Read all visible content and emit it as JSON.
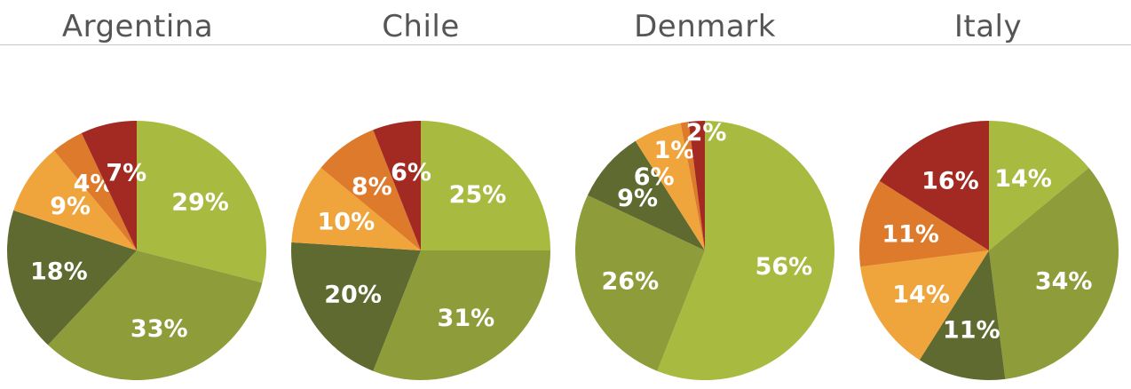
{
  "colors": {
    "light_green": "#a8bb40",
    "olive": "#8e9c3a",
    "dark_olive": "#5e6a30",
    "light_orange": "#f0a43c",
    "orange": "#de7a2c",
    "dark_red": "#a32a22",
    "title_text": "#555555"
  },
  "chart_data": [
    {
      "type": "pie",
      "title": "Argentina",
      "slices": [
        {
          "value": 29,
          "label": "29%",
          "color": "#a8bb40"
        },
        {
          "value": 33,
          "label": "33%",
          "color": "#8e9c3a"
        },
        {
          "value": 18,
          "label": "18%",
          "color": "#5e6a30"
        },
        {
          "value": 9,
          "label": "9%",
          "color": "#f0a43c"
        },
        {
          "value": 4,
          "label": "4%",
          "color": "#de7a2c"
        },
        {
          "value": 7,
          "label": "7%",
          "color": "#a32a22"
        }
      ]
    },
    {
      "type": "pie",
      "title": "Chile",
      "slices": [
        {
          "value": 25,
          "label": "25%",
          "color": "#a8bb40"
        },
        {
          "value": 31,
          "label": "31%",
          "color": "#8e9c3a"
        },
        {
          "value": 20,
          "label": "20%",
          "color": "#5e6a30"
        },
        {
          "value": 10,
          "label": "10%",
          "color": "#f0a43c"
        },
        {
          "value": 8,
          "label": "8%",
          "color": "#de7a2c"
        },
        {
          "value": 6,
          "label": "6%",
          "color": "#a32a22"
        }
      ]
    },
    {
      "type": "pie",
      "title": "Denmark",
      "slices": [
        {
          "value": 56,
          "label": "56%",
          "color": "#a8bb40"
        },
        {
          "value": 26,
          "label": "26%",
          "color": "#8e9c3a"
        },
        {
          "value": 9,
          "label": "9%",
          "color": "#5e6a30"
        },
        {
          "value": 6,
          "label": "6%",
          "color": "#f0a43c"
        },
        {
          "value": 1,
          "label": "1%",
          "color": "#de7a2c"
        },
        {
          "value": 2,
          "label": "2%",
          "color": "#a32a22"
        }
      ]
    },
    {
      "type": "pie",
      "title": "Italy",
      "slices": [
        {
          "value": 14,
          "label": "14%",
          "color": "#a8bb40"
        },
        {
          "value": 34,
          "label": "34%",
          "color": "#8e9c3a"
        },
        {
          "value": 11,
          "label": "11%",
          "color": "#5e6a30"
        },
        {
          "value": 14,
          "label": "14%",
          "color": "#f0a43c"
        },
        {
          "value": 11,
          "label": "11%",
          "color": "#de7a2c"
        },
        {
          "value": 16,
          "label": "16%",
          "color": "#a32a22"
        }
      ]
    }
  ]
}
